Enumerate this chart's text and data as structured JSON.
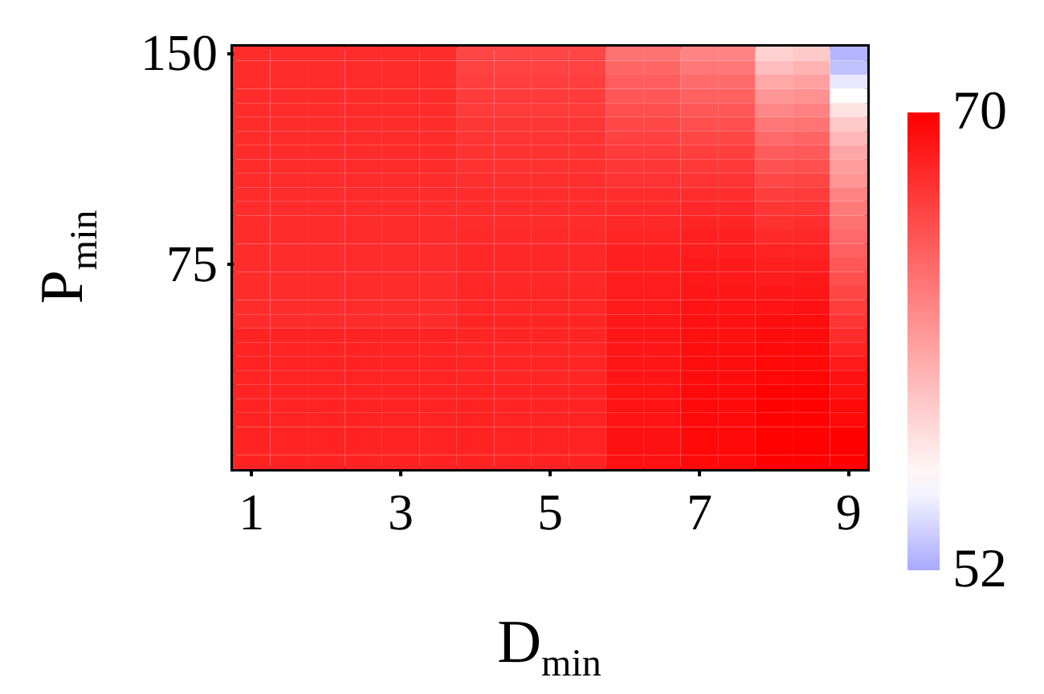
{
  "chart_data": {
    "type": "heatmap",
    "xlabel": "D$_{min}$",
    "ylabel": "P$_{min}$",
    "categories": [
      "1",
      null,
      null,
      null,
      "3",
      null,
      null,
      null,
      "5",
      null,
      null,
      null,
      "7",
      null,
      null,
      null,
      "9"
    ],
    "y_categories": [
      "150",
      null,
      null,
      null,
      null,
      null,
      null,
      null,
      null,
      null,
      null,
      null,
      null,
      null,
      null,
      "75",
      null,
      null,
      null,
      null,
      null,
      null,
      null,
      null,
      null,
      null,
      null,
      null,
      null,
      null
    ],
    "cells": [
      [
        67.5,
        67.5,
        67.5,
        67.5,
        67.5,
        67.5,
        66,
        66,
        66,
        66,
        63.5,
        63.5,
        62.5,
        62.5,
        58,
        58.5,
        52.5
      ],
      [
        67.5,
        67.5,
        67.5,
        67.5,
        67.5,
        67.5,
        66.2,
        66.2,
        66.2,
        66.2,
        64.1,
        64.1,
        63.2,
        63.2,
        59.2,
        59.7,
        53
      ],
      [
        67.5,
        67.5,
        67.5,
        67.5,
        67.5,
        67.5,
        66.4,
        66.4,
        66.4,
        66.4,
        64.6,
        64.6,
        63.9,
        63.9,
        60.4,
        60.8,
        54.5
      ],
      [
        67.5,
        67.5,
        67.5,
        67.5,
        67.5,
        67.5,
        66.6,
        66.6,
        66.6,
        66.6,
        65,
        65,
        64.5,
        64.5,
        61.4,
        61.7,
        55.5
      ],
      [
        67.5,
        67.5,
        67.5,
        67.5,
        67.5,
        67.5,
        66.7,
        66.7,
        66.7,
        66.7,
        65.5,
        65.5,
        65,
        65,
        62.3,
        62.6,
        57
      ],
      [
        67.5,
        67.5,
        67.5,
        67.5,
        67.5,
        67.5,
        66.9,
        66.9,
        66.9,
        66.9,
        65.9,
        65.9,
        65.5,
        65.5,
        63.2,
        63.4,
        58.5
      ],
      [
        67.5,
        67.5,
        67.5,
        67.5,
        67.5,
        67.5,
        67,
        67,
        67,
        67,
        66.3,
        66.3,
        66,
        66,
        64,
        64.3,
        59.5
      ],
      [
        67.5,
        67.5,
        67.5,
        67.5,
        67.5,
        67.5,
        67.1,
        67.1,
        67.1,
        67.1,
        66.6,
        66.6,
        66.4,
        66.4,
        64.7,
        64.9,
        60.5
      ],
      [
        67.5,
        67.5,
        67.5,
        67.5,
        67.5,
        67.5,
        67.2,
        67.2,
        67.2,
        67.2,
        66.9,
        66.9,
        66.8,
        66.8,
        65.3,
        65.5,
        61
      ],
      [
        67.5,
        67.5,
        67.5,
        67.5,
        67.5,
        67.5,
        67.3,
        67.3,
        67.3,
        67.3,
        67.1,
        67.1,
        67.1,
        67.1,
        65.9,
        66.1,
        61.5
      ],
      [
        67.5,
        67.5,
        67.5,
        67.5,
        67.5,
        67.5,
        67.4,
        67.4,
        67.4,
        67.4,
        67.4,
        67.4,
        67.4,
        67.4,
        66.4,
        66.6,
        62.5
      ],
      [
        67.5,
        67.5,
        67.5,
        67.5,
        67.5,
        67.5,
        67.5,
        67.5,
        67.5,
        67.5,
        67.6,
        67.6,
        67.7,
        67.7,
        66.9,
        67,
        63
      ],
      [
        67.5,
        67.5,
        67.5,
        67.5,
        67.5,
        67.5,
        67.5,
        67.5,
        67.5,
        67.5,
        67.7,
        67.7,
        67.9,
        67.9,
        67.2,
        67.4,
        63.5
      ],
      [
        67.5,
        67.5,
        67.5,
        67.5,
        67.5,
        67.5,
        67.6,
        67.6,
        67.6,
        67.6,
        67.9,
        67.9,
        68.1,
        68.1,
        67.6,
        67.7,
        64
      ],
      [
        67.5,
        67.5,
        67.5,
        67.5,
        67.5,
        67.5,
        67.7,
        67.7,
        67.7,
        67.7,
        68.1,
        68.1,
        68.3,
        68.3,
        68,
        68,
        64.5
      ],
      [
        67.5,
        67.5,
        67.5,
        67.5,
        67.5,
        67.5,
        67.7,
        67.7,
        67.7,
        67.7,
        68.2,
        68.2,
        68.5,
        68.5,
        68.2,
        68.3,
        65
      ],
      [
        67.5,
        67.5,
        67.5,
        67.5,
        67.5,
        67.5,
        67.7,
        67.7,
        67.7,
        67.7,
        68.3,
        68.3,
        68.6,
        68.6,
        68.4,
        68.5,
        65.5
      ],
      [
        67.5,
        67.5,
        67.5,
        67.5,
        67.5,
        67.5,
        67.8,
        67.8,
        67.8,
        67.8,
        68.4,
        68.4,
        68.7,
        68.7,
        68.7,
        68.7,
        66
      ],
      [
        67.5,
        67.5,
        67.5,
        67.5,
        67.5,
        67.5,
        67.8,
        67.8,
        67.8,
        67.8,
        68.5,
        68.5,
        68.9,
        68.9,
        68.9,
        69,
        66.5
      ],
      [
        67.5,
        67.5,
        67.5,
        67.5,
        67.5,
        67.5,
        67.9,
        67.9,
        67.9,
        67.9,
        68.6,
        68.6,
        69,
        69,
        69.2,
        69.2,
        67
      ],
      [
        68,
        68,
        68,
        68,
        68,
        68,
        67.9,
        67.9,
        67.9,
        67.9,
        68.7,
        68.7,
        69.1,
        69.1,
        69.3,
        69.3,
        67.5
      ],
      [
        68,
        68,
        68,
        68,
        68,
        68,
        67.9,
        67.9,
        67.9,
        67.9,
        68.7,
        68.7,
        69.2,
        69.2,
        69.4,
        69.4,
        68
      ],
      [
        68,
        68,
        68,
        68,
        68,
        68,
        67.9,
        67.9,
        67.9,
        67.9,
        68.8,
        68.8,
        69.2,
        69.2,
        69.5,
        69.5,
        68.5
      ],
      [
        68,
        68,
        68,
        68,
        68,
        68,
        67.9,
        67.9,
        67.9,
        67.9,
        68.8,
        68.8,
        69.3,
        69.3,
        69.6,
        69.7,
        69
      ],
      [
        68,
        68,
        68,
        68,
        68,
        68,
        68,
        68,
        68,
        68,
        68.9,
        68.9,
        69.4,
        69.4,
        69.8,
        69.8,
        69
      ],
      [
        68,
        68,
        68,
        68,
        68,
        68,
        68,
        68,
        68,
        68,
        68.9,
        68.9,
        69.4,
        69.4,
        69.8,
        69.8,
        69.5
      ],
      [
        68,
        68,
        68,
        68,
        68,
        68,
        68,
        68,
        68,
        68,
        68.9,
        68.9,
        69.4,
        69.4,
        69.9,
        69.9,
        69.5
      ],
      [
        68,
        68,
        68,
        68,
        68,
        68,
        68,
        68,
        68,
        68,
        69,
        69,
        69.5,
        69.5,
        69.9,
        69.9,
        70
      ],
      [
        68,
        68,
        68,
        68,
        68,
        68,
        68,
        68,
        68,
        68,
        69,
        69,
        69.5,
        69.5,
        70,
        70,
        70
      ],
      [
        68,
        68,
        68,
        68,
        68,
        68,
        68,
        68,
        68,
        68,
        69,
        69,
        69.5,
        69.5,
        70,
        70,
        70
      ]
    ],
    "clim": [
      52,
      70
    ],
    "cticks": [
      52,
      70
    ]
  }
}
